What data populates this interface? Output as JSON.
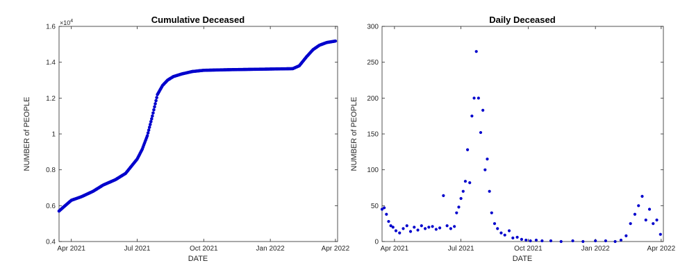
{
  "chart_data": [
    {
      "type": "scatter",
      "title": "Cumulative Deceased",
      "xlabel": "DATE",
      "ylabel": "NUMBER of PEOPLE",
      "y_exponent_label": "×10",
      "y_exponent_power": "4",
      "xlim": [
        "2021-03-15",
        "2022-04-04"
      ],
      "ylim": [
        0.4,
        1.6
      ],
      "x_ticks": [
        {
          "date": "2021-04-01",
          "label": "Apr 2021"
        },
        {
          "date": "2021-07-01",
          "label": "Jul 2021"
        },
        {
          "date": "2021-10-01",
          "label": "Oct 2021"
        },
        {
          "date": "2022-01-01",
          "label": "Jan 2022"
        },
        {
          "date": "2022-04-01",
          "label": "Apr 2022"
        }
      ],
      "y_ticks": [
        {
          "value": 0.4,
          "label": "0.4"
        },
        {
          "value": 0.6,
          "label": "0.6"
        },
        {
          "value": 0.8,
          "label": "0.8"
        },
        {
          "value": 1.0,
          "label": "1"
        },
        {
          "value": 1.2,
          "label": "1.2"
        },
        {
          "value": 1.4,
          "label": "1.4"
        },
        {
          "value": 1.6,
          "label": "1.6"
        }
      ],
      "marker_color": "#0000cc",
      "grid": false,
      "series": [
        {
          "x": [
            "2021-03-15",
            "2021-03-22",
            "2021-04-01",
            "2021-04-15",
            "2021-05-01",
            "2021-05-15",
            "2021-06-01",
            "2021-06-15",
            "2021-06-25",
            "2021-07-01",
            "2021-07-08",
            "2021-07-15",
            "2021-07-22",
            "2021-07-29",
            "2021-08-05",
            "2021-08-12",
            "2021-08-20",
            "2021-09-01",
            "2021-09-15",
            "2021-10-01",
            "2021-11-01",
            "2021-12-01",
            "2022-01-01",
            "2022-02-01",
            "2022-02-10",
            "2022-02-20",
            "2022-03-01",
            "2022-03-10",
            "2022-03-20",
            "2022-04-01"
          ],
          "y": [
            0.57,
            0.595,
            0.63,
            0.65,
            0.68,
            0.715,
            0.745,
            0.78,
            0.83,
            0.86,
            0.915,
            0.99,
            1.1,
            1.22,
            1.27,
            1.3,
            1.32,
            1.335,
            1.348,
            1.355,
            1.358,
            1.36,
            1.362,
            1.364,
            1.38,
            1.43,
            1.47,
            1.495,
            1.51,
            1.518
          ]
        }
      ]
    },
    {
      "type": "scatter",
      "title": "Daily Deceased",
      "xlabel": "DATE",
      "ylabel": "NUMBER of PEOPLE",
      "xlim": [
        "2021-03-15",
        "2022-04-04"
      ],
      "ylim": [
        0,
        300
      ],
      "x_ticks": [
        {
          "date": "2021-04-01",
          "label": "Apr 2021"
        },
        {
          "date": "2021-07-01",
          "label": "Jul 2021"
        },
        {
          "date": "2021-10-01",
          "label": "Oct 2021"
        },
        {
          "date": "2022-01-01",
          "label": "Jan 2022"
        },
        {
          "date": "2022-04-01",
          "label": "Apr 2022"
        }
      ],
      "y_ticks": [
        {
          "value": 0,
          "label": "0"
        },
        {
          "value": 50,
          "label": "50"
        },
        {
          "value": 100,
          "label": "100"
        },
        {
          "value": 150,
          "label": "150"
        },
        {
          "value": 200,
          "label": "200"
        },
        {
          "value": 250,
          "label": "250"
        },
        {
          "value": 300,
          "label": "300"
        }
      ],
      "marker_color": "#0000cc",
      "grid": false,
      "series": [
        {
          "x": [
            "2021-03-15",
            "2021-03-18",
            "2021-03-21",
            "2021-03-24",
            "2021-03-27",
            "2021-03-30",
            "2021-04-03",
            "2021-04-08",
            "2021-04-13",
            "2021-04-18",
            "2021-04-23",
            "2021-04-28",
            "2021-05-03",
            "2021-05-08",
            "2021-05-13",
            "2021-05-18",
            "2021-05-23",
            "2021-05-28",
            "2021-06-02",
            "2021-06-07",
            "2021-06-12",
            "2021-06-17",
            "2021-06-22",
            "2021-06-25",
            "2021-06-28",
            "2021-07-01",
            "2021-07-04",
            "2021-07-07",
            "2021-07-10",
            "2021-07-13",
            "2021-07-16",
            "2021-07-19",
            "2021-07-22",
            "2021-07-25",
            "2021-07-28",
            "2021-07-31",
            "2021-08-03",
            "2021-08-06",
            "2021-08-09",
            "2021-08-12",
            "2021-08-16",
            "2021-08-20",
            "2021-08-25",
            "2021-08-30",
            "2021-09-05",
            "2021-09-10",
            "2021-09-16",
            "2021-09-22",
            "2021-09-28",
            "2021-10-04",
            "2021-10-12",
            "2021-10-20",
            "2021-11-01",
            "2021-11-15",
            "2021-12-01",
            "2021-12-15",
            "2022-01-01",
            "2022-01-15",
            "2022-01-28",
            "2022-02-05",
            "2022-02-12",
            "2022-02-18",
            "2022-02-24",
            "2022-03-01",
            "2022-03-06",
            "2022-03-11",
            "2022-03-16",
            "2022-03-21",
            "2022-03-26",
            "2022-03-31"
          ],
          "y": [
            45,
            47,
            38,
            28,
            22,
            20,
            15,
            12,
            18,
            22,
            14,
            20,
            16,
            22,
            18,
            20,
            21,
            17,
            19,
            64,
            22,
            18,
            21,
            40,
            48,
            60,
            70,
            84,
            128,
            82,
            175,
            200,
            265,
            200,
            152,
            183,
            100,
            115,
            70,
            40,
            25,
            18,
            12,
            9,
            15,
            5,
            6,
            3,
            2,
            1,
            2,
            1,
            1,
            0,
            1,
            0,
            1,
            1,
            0,
            2,
            8,
            25,
            38,
            50,
            63,
            30,
            45,
            25,
            30,
            10
          ]
        }
      ]
    }
  ]
}
